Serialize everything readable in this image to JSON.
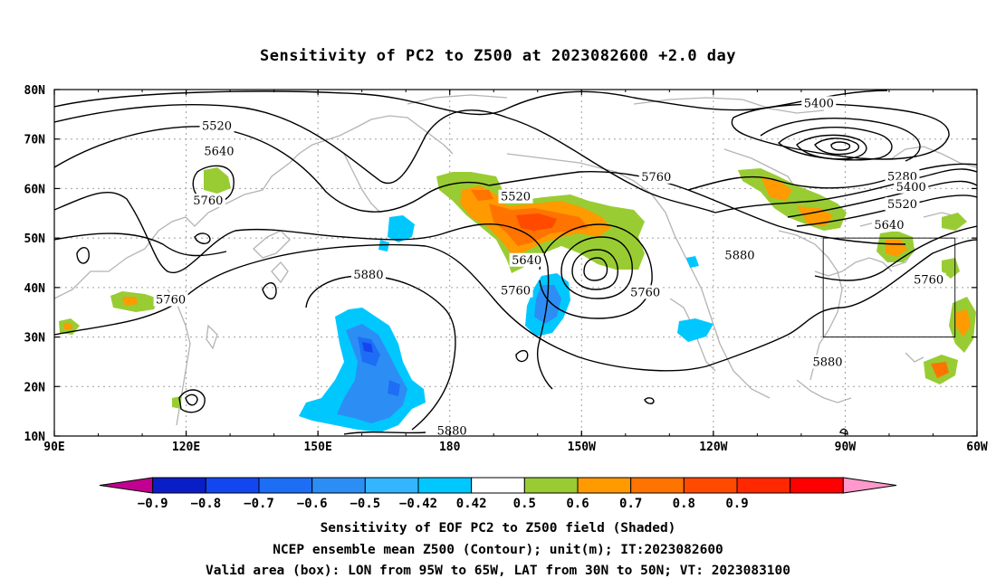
{
  "title": "Sensitivity of PC2 to Z500 at 2023082600 +2.0 day",
  "map": {
    "lon_range": [
      90,
      300
    ],
    "lat_range": [
      10,
      80
    ],
    "lon_ticks": [
      {
        "lon": 90,
        "label": "90E"
      },
      {
        "lon": 120,
        "label": "120E"
      },
      {
        "lon": 150,
        "label": "150E"
      },
      {
        "lon": 180,
        "label": "180"
      },
      {
        "lon": 210,
        "label": "150W"
      },
      {
        "lon": 240,
        "label": "120W"
      },
      {
        "lon": 270,
        "label": "90W"
      },
      {
        "lon": 300,
        "label": "60W"
      }
    ],
    "lat_ticks": [
      {
        "lat": 10,
        "label": "10N"
      },
      {
        "lat": 20,
        "label": "20N"
      },
      {
        "lat": 30,
        "label": "30N"
      },
      {
        "lat": 40,
        "label": "40N"
      },
      {
        "lat": 50,
        "label": "50N"
      },
      {
        "lat": 60,
        "label": "60N"
      },
      {
        "lat": 70,
        "label": "70N"
      },
      {
        "lat": 80,
        "label": "80N"
      }
    ],
    "grid": true,
    "valid_box": {
      "lon_min": 265,
      "lon_max": 295,
      "lat_min": 30,
      "lat_max": 50
    }
  },
  "contour_labels": [
    {
      "text": "5520",
      "lon": 127,
      "lat": 72.6
    },
    {
      "text": "5640",
      "lon": 127.5,
      "lat": 67.5
    },
    {
      "text": "5760",
      "lon": 125,
      "lat": 57.5
    },
    {
      "text": "5760",
      "lon": 116.5,
      "lat": 37.5
    },
    {
      "text": "5880",
      "lon": 161.5,
      "lat": 42.5
    },
    {
      "text": "5520",
      "lon": 195,
      "lat": 58.3
    },
    {
      "text": "5640",
      "lon": 197.5,
      "lat": 45.5
    },
    {
      "text": "5760",
      "lon": 195,
      "lat": 39.3
    },
    {
      "text": "5760",
      "lon": 227,
      "lat": 62.3
    },
    {
      "text": "5760",
      "lon": 224.5,
      "lat": 39
    },
    {
      "text": "5880",
      "lon": 246,
      "lat": 46.5
    },
    {
      "text": "5880",
      "lon": 180.5,
      "lat": 11
    },
    {
      "text": "5400",
      "lon": 264,
      "lat": 77.2
    },
    {
      "text": "5280",
      "lon": 283,
      "lat": 62.4
    },
    {
      "text": "5400",
      "lon": 285,
      "lat": 60.3
    },
    {
      "text": "5520",
      "lon": 283,
      "lat": 56.8
    },
    {
      "text": "5640",
      "lon": 280,
      "lat": 52.6
    },
    {
      "text": "5760",
      "lon": 289,
      "lat": 41.5
    },
    {
      "text": "5880",
      "lon": 266,
      "lat": 24.9
    }
  ],
  "colorbar": {
    "colors": [
      "#c2008f",
      "#0a1ec8",
      "#1446f0",
      "#1e6ef5",
      "#2c8ef5",
      "#33b5ff",
      "#00c8ff",
      "#ffffff",
      "#99cc33",
      "#ff9a00",
      "#ff7300",
      "#ff4a00",
      "#ff2800",
      "#ff0000",
      "#ff99cc"
    ],
    "labels": [
      "−0.9",
      "−0.8",
      "−0.7",
      "−0.6",
      "−0.5",
      "−0.42",
      "0.42",
      "0.5",
      "0.6",
      "0.7",
      "0.8",
      "0.9"
    ]
  },
  "footer": {
    "line1": "Sensitivity of EOF PC2 to Z500 field (Shaded)",
    "line2": "NCEP ensemble mean Z500 (Contour); unit(m); IT:2023082600",
    "line3": "Valid area (box): LON from 95W to 65W, LAT from 30N to 50N; VT: 2023083100"
  }
}
